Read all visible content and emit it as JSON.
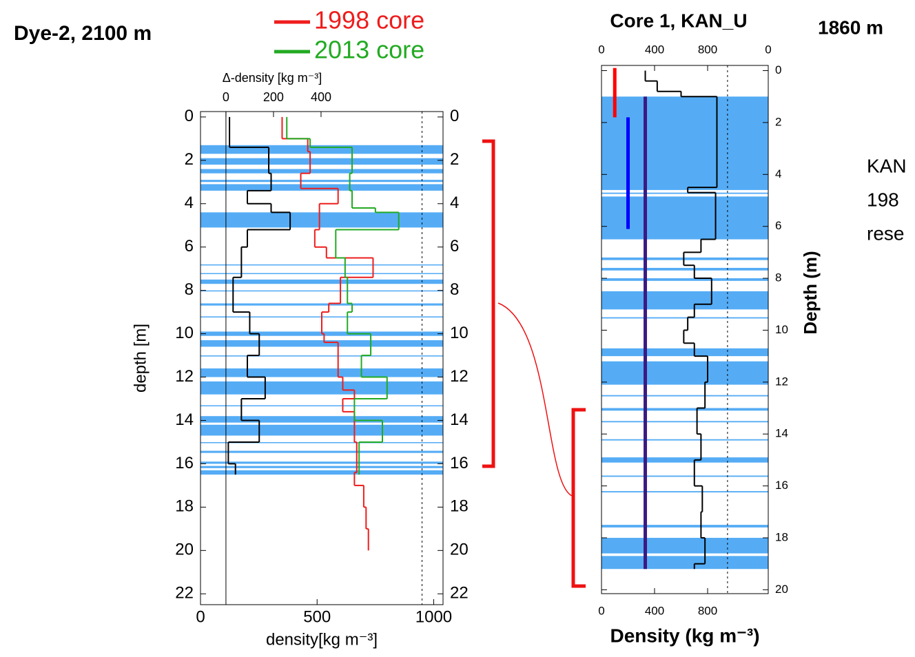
{
  "chart_data": [
    {
      "type": "step",
      "title": "Dye-2, 2100 m",
      "x_label": "density[kg m⁻³]",
      "x2_label": "Δ-density [kg m⁻³]",
      "y_label": "depth [m]",
      "xlim": [
        0,
        1040
      ],
      "xticks": [
        0,
        500,
        1000
      ],
      "x2lim": [
        -107,
        913
      ],
      "x2ticks": [
        0,
        200,
        400
      ],
      "ylim": [
        -0.25,
        22.5
      ],
      "yticks": [
        0,
        2,
        4,
        6,
        8,
        10,
        12,
        14,
        16,
        18,
        20,
        22
      ],
      "y_inverted": true,
      "vline": 950,
      "legend": "top",
      "ice_color": "#55acf5",
      "ice_layers": [
        [
          1.3,
          1.7
        ],
        [
          1.9,
          2.2
        ],
        [
          2.4,
          2.6
        ],
        [
          2.9,
          3.0
        ],
        [
          3.1,
          3.4
        ],
        [
          4.4,
          5.1
        ],
        [
          6.8,
          6.85
        ],
        [
          7.2,
          7.25
        ],
        [
          7.5,
          7.7
        ],
        [
          8.0,
          8.05
        ],
        [
          8.6,
          8.7
        ],
        [
          9.2,
          9.25
        ],
        [
          9.9,
          10.1
        ],
        [
          10.3,
          10.6
        ],
        [
          11.0,
          11.05
        ],
        [
          11.6,
          12.0
        ],
        [
          12.2,
          12.8
        ],
        [
          13.3,
          13.35
        ],
        [
          13.8,
          14.1
        ],
        [
          14.2,
          14.7
        ],
        [
          15.0,
          15.05
        ],
        [
          15.4,
          15.5
        ],
        [
          15.9,
          16.0
        ],
        [
          16.1,
          16.2
        ],
        [
          16.3,
          16.5
        ]
      ],
      "series": [
        {
          "name": "1998 core",
          "color": "#ee1c1c",
          "depth_bins": [
            0,
            1.0,
            1.6,
            2.6,
            3.3,
            4.0,
            5.2,
            6.0,
            6.5,
            7.4,
            8.6,
            9.0,
            10.0,
            10.4,
            11.0,
            12.0,
            12.6,
            13.0,
            13.6,
            14.0,
            15.0,
            16.0,
            16.4,
            17.0,
            18.0,
            19.0,
            20.0
          ],
          "values": [
            350,
            460,
            470,
            430,
            590,
            510,
            490,
            540,
            740,
            600,
            550,
            520,
            530,
            590,
            590,
            610,
            660,
            610,
            660,
            660,
            670,
            670,
            660,
            700,
            710,
            720
          ]
        },
        {
          "name": "2013 core",
          "color": "#22aa22",
          "depth_bins": [
            0,
            1.0,
            1.4,
            2.6,
            3.4,
            4.2,
            4.4,
            5.2,
            6.5,
            7.4,
            8.6,
            9.0,
            10.0,
            11.0,
            12.0,
            13.0,
            14.0,
            15.0,
            16.5
          ],
          "values": [
            370,
            470,
            650,
            640,
            650,
            750,
            850,
            580,
            620,
            630,
            650,
            630,
            730,
            690,
            800,
            660,
            780,
            680
          ]
        },
        {
          "color": "#000000",
          "axis": "x2",
          "depth_bins": [
            0,
            1.4,
            2.6,
            3.4,
            4.0,
            4.4,
            5.2,
            6.0,
            7.4,
            9.0,
            10.0,
            11.0,
            12.0,
            13.0,
            14.0,
            15.0,
            16.0,
            16.5
          ],
          "values": [
            15,
            180,
            190,
            90,
            190,
            270,
            90,
            65,
            30,
            100,
            140,
            90,
            165,
            65,
            140,
            10,
            40
          ]
        }
      ]
    },
    {
      "type": "step",
      "title": "Core 1, KAN_U",
      "subtitle": "1860 m",
      "x_label": "Density (kg m⁻³)",
      "y_label": "Depth (m)",
      "xlim": [
        0,
        1257
      ],
      "xticks": [
        0,
        400,
        800
      ],
      "top_right_label": "0",
      "ylim": [
        -0.2,
        20.15
      ],
      "yticks": [
        0,
        2,
        4,
        6,
        8,
        10,
        12,
        14,
        16,
        18,
        20
      ],
      "y_inverted": true,
      "vline": 950,
      "ice_color": "#55acf5",
      "ice_layers": [
        [
          1.0,
          4.6
        ],
        [
          4.7,
          4.75
        ],
        [
          4.85,
          6.5
        ],
        [
          7.2,
          7.3
        ],
        [
          7.6,
          7.7
        ],
        [
          8.0,
          8.1
        ],
        [
          8.5,
          9.2
        ],
        [
          9.5,
          9.55
        ],
        [
          10.7,
          11.0
        ],
        [
          11.2,
          12.1
        ],
        [
          12.5,
          12.55
        ],
        [
          13.0,
          13.1
        ],
        [
          13.5,
          13.55
        ],
        [
          14.2,
          14.25
        ],
        [
          14.9,
          15.1
        ],
        [
          15.6,
          15.65
        ],
        [
          16.2,
          16.25
        ],
        [
          17.5,
          17.6
        ],
        [
          18.0,
          18.6
        ],
        [
          18.7,
          19.2
        ]
      ],
      "series": [
        {
          "color": "#000000",
          "depth_bins": [
            0,
            0.4,
            0.8,
            1.0,
            4.5,
            4.7,
            6.5,
            7.0,
            7.5,
            8.0,
            9.0,
            9.5,
            10.0,
            10.5,
            11.0,
            12.0,
            13.0,
            14.0,
            15.0,
            16.0,
            17.0,
            18.0,
            19.0,
            19.2
          ],
          "values": [
            330,
            420,
            600,
            870,
            650,
            860,
            750,
            620,
            700,
            830,
            700,
            650,
            620,
            700,
            800,
            780,
            720,
            750,
            700,
            760,
            750,
            780,
            700
          ]
        }
      ],
      "bars": [
        {
          "color": "#ff0000",
          "value": 100,
          "depth": [
            -0.1,
            1.8
          ]
        },
        {
          "color": "#0000ff",
          "value": 200,
          "depth": [
            1.8,
            6.1
          ]
        },
        {
          "color": "#3b1a80",
          "value": 330,
          "depth": [
            1.0,
            19.2
          ]
        }
      ],
      "note_lines": [
        "KAN",
        "198",
        "rese"
      ]
    }
  ]
}
